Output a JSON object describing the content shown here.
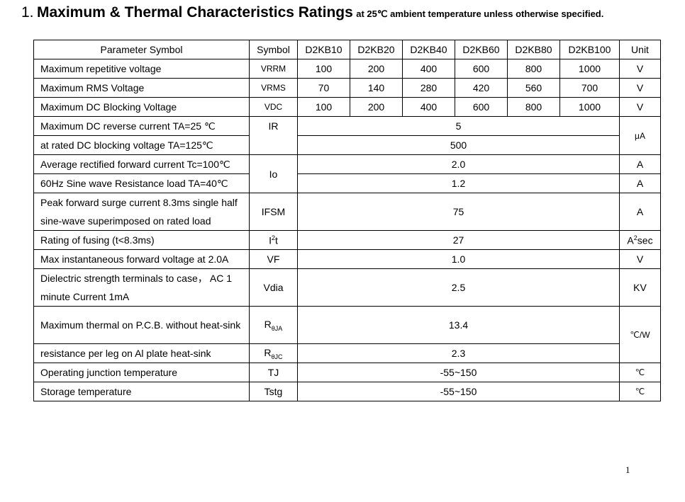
{
  "heading": {
    "number": "1.",
    "title": "Maximum & Thermal Characteristics Ratings",
    "subtitle_pre": "at 25",
    "subtitle_deg": "℃",
    "subtitle_post": " ambient temperature unless otherwise specified."
  },
  "table": {
    "headers": [
      "Parameter Symbol",
      "Symbol",
      "D2KB10",
      "D2KB20",
      "D2KB40",
      "D2KB60",
      "D2KB80",
      "D2KB100",
      "Unit"
    ],
    "rows": {
      "vrrm": {
        "param": "Maximum repetitive voltage",
        "symbol": "VRRM",
        "values": [
          "100",
          "200",
          "400",
          "600",
          "800",
          "1000"
        ],
        "unit": "V"
      },
      "vrms": {
        "param": "Maximum RMS Voltage",
        "symbol": "VRMS",
        "values": [
          "70",
          "140",
          "280",
          "420",
          "560",
          "700"
        ],
        "unit": "V"
      },
      "vdc": {
        "param": "Maximum DC Blocking Voltage",
        "symbol": "VDC",
        "values": [
          "100",
          "200",
          "400",
          "600",
          "800",
          "1000"
        ],
        "unit": "V"
      },
      "ir": {
        "param1": "Maximum DC reverse current TA=25 ℃",
        "param2": "at rated DC blocking voltage TA=125℃",
        "symbol": "IR",
        "value1": "5",
        "value2": "500",
        "unit": "μA"
      },
      "io": {
        "param1": "Average rectified forward current Tc=100℃",
        "param2": "60Hz Sine wave Resistance load TA=40℃",
        "symbol": "Io",
        "value1": "2.0",
        "value2": "1.2",
        "unit1": "A",
        "unit2": "A"
      },
      "ifsm": {
        "param": "Peak forward surge current 8.3ms single half sine-wave superimposed on rated load",
        "symbol": "IFSM",
        "value": "75",
        "unit": "A"
      },
      "i2t": {
        "param": "Rating of fusing (t<8.3ms)",
        "symbol_base": "I",
        "symbol_sup": "2",
        "symbol_tail": "t",
        "value": "27",
        "unit_base": "A",
        "unit_sup": "2",
        "unit_tail": "sec"
      },
      "vf": {
        "param": "Max instantaneous forward voltage at 2.0A",
        "symbol": "VF",
        "value": "1.0",
        "unit": "V"
      },
      "vdia": {
        "param": "Dielectric strength terminals to case， AC 1 minute Current 1mA",
        "symbol": "Vdia",
        "value": "2.5",
        "unit": "KV"
      },
      "rja": {
        "param": "Maximum thermal on P.C.B. without heat-sink",
        "symbol_base": "R",
        "symbol_sub": "θJA",
        "value": "13.4"
      },
      "rjc": {
        "param": "resistance per leg on Al plate heat-sink",
        "symbol_base": "R",
        "symbol_sub": "θJC",
        "value": "2.3"
      },
      "thermal_unit": "℃/W",
      "tj": {
        "param": "Operating junction temperature",
        "symbol": "TJ",
        "value": "-55~150",
        "unit": "℃"
      },
      "tstg": {
        "param": "Storage temperature",
        "symbol": "Tstg",
        "value": "-55~150",
        "unit": "℃"
      }
    }
  },
  "page_number": "1"
}
